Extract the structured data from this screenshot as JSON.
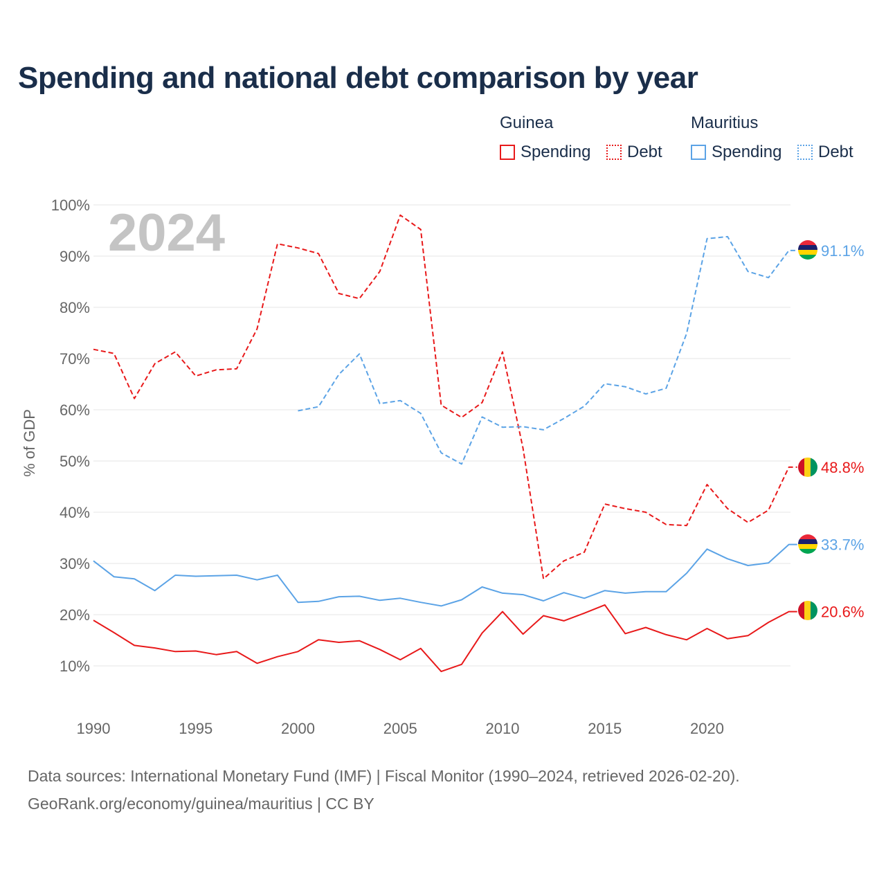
{
  "header": {
    "title": "Spending and national debt comparison by year"
  },
  "legend": {
    "groups": [
      {
        "country": "Guinea",
        "items": [
          {
            "label": "Spending",
            "style": "solid"
          },
          {
            "label": "Debt",
            "style": "dotted"
          }
        ]
      },
      {
        "country": "Mauritius",
        "items": [
          {
            "label": "Spending",
            "style": "solid"
          },
          {
            "label": "Debt",
            "style": "dotted"
          }
        ]
      }
    ]
  },
  "footer": {
    "line1": "Data sources: International Monetary Fund (IMF) | Fiscal Monitor (1990–2024, retrieved 2026-02-20).",
    "line2": "GeoRank.org/economy/guinea/mauritius | CC BY"
  },
  "chart_data": {
    "type": "line",
    "title": "Spending and national debt comparison by year",
    "year_watermark": "2024",
    "xlabel": "",
    "ylabel": "% of GDP",
    "xlim": [
      1990,
      2024
    ],
    "ylim": [
      0,
      100
    ],
    "x_ticks": [
      1990,
      1995,
      2000,
      2005,
      2010,
      2015,
      2020
    ],
    "y_ticks": [
      10,
      20,
      30,
      40,
      50,
      60,
      70,
      80,
      90,
      100
    ],
    "y_tick_labels": [
      "10%",
      "20%",
      "30%",
      "40%",
      "50%",
      "60%",
      "70%",
      "80%",
      "90%",
      "100%"
    ],
    "grid": true,
    "series": [
      {
        "name": "Guinea Debt",
        "country": "Guinea",
        "metric": "Debt",
        "color": "#e8191a",
        "dash": "dashed",
        "start_year": 1990,
        "values": [
          71.8,
          71.0,
          62.2,
          69.0,
          71.3,
          66.6,
          67.8,
          68.0,
          75.8,
          92.4,
          91.6,
          90.5,
          82.7,
          81.7,
          87.0,
          98.0,
          95.2,
          60.9,
          58.5,
          61.4,
          71.3,
          52.5,
          27.0,
          30.5,
          32.2,
          41.6,
          40.7,
          40.0,
          37.6,
          37.4,
          45.4,
          40.7,
          38.0,
          40.4,
          48.8
        ],
        "end_label": "48.8%"
      },
      {
        "name": "Mauritius Debt",
        "country": "Mauritius",
        "metric": "Debt",
        "color": "#5ba3e6",
        "dash": "dashed",
        "start_year": 2000,
        "values": [
          59.8,
          60.6,
          66.9,
          70.9,
          61.2,
          61.8,
          59.3,
          51.6,
          49.4,
          58.6,
          56.6,
          56.7,
          56.1,
          58.3,
          60.7,
          65.1,
          64.5,
          63.1,
          64.2,
          74.9,
          93.4,
          93.8,
          87.0,
          85.8,
          91.1
        ],
        "end_label": "91.1%"
      },
      {
        "name": "Mauritius Spending",
        "country": "Mauritius",
        "metric": "Spending",
        "color": "#5ba3e6",
        "dash": "solid",
        "start_year": 1990,
        "values": [
          30.5,
          27.4,
          27.0,
          24.7,
          27.7,
          27.5,
          27.6,
          27.7,
          26.8,
          27.7,
          22.4,
          22.6,
          23.5,
          23.6,
          22.8,
          23.2,
          22.4,
          21.7,
          22.9,
          25.4,
          24.2,
          23.9,
          22.7,
          24.3,
          23.2,
          24.7,
          24.2,
          24.5,
          24.5,
          28.1,
          32.8,
          30.9,
          29.6,
          30.1,
          33.7
        ],
        "end_label": "33.7%"
      },
      {
        "name": "Guinea Spending",
        "country": "Guinea",
        "metric": "Spending",
        "color": "#e8191a",
        "dash": "solid",
        "start_year": 1990,
        "values": [
          18.9,
          16.5,
          14.0,
          13.5,
          12.8,
          12.9,
          12.2,
          12.8,
          10.5,
          11.8,
          12.8,
          15.1,
          14.6,
          14.9,
          13.2,
          11.2,
          13.4,
          8.9,
          10.3,
          16.4,
          20.6,
          16.2,
          19.8,
          18.8,
          20.3,
          21.9,
          16.3,
          17.5,
          16.1,
          15.1,
          17.3,
          15.3,
          15.9,
          18.5,
          20.6
        ],
        "end_label": "20.6%"
      }
    ]
  }
}
